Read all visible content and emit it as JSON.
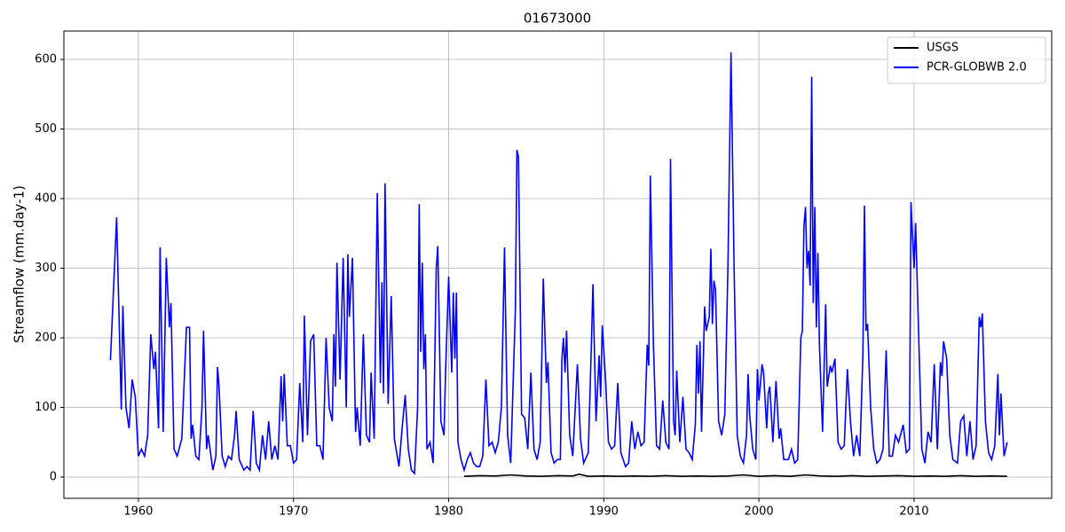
{
  "chart_data": {
    "type": "line",
    "title": "01673000",
    "y_label": "Streamflow (mm.day-1)",
    "xlim": [
      1955.2,
      2018.87
    ],
    "xticks": [
      1960,
      1970,
      1980,
      1990,
      2000,
      2010
    ],
    "ylim": [
      -30.6,
      640.8
    ],
    "yticks": [
      0,
      100,
      200,
      300,
      400,
      500,
      600
    ],
    "grid": true,
    "legend": "upper right",
    "series": [
      {
        "name": "USGS",
        "color": "#000000",
        "x": [
          1981,
          1982,
          1983,
          1984,
          1985,
          1986,
          1987,
          1988,
          1988.4,
          1989,
          1990,
          1991,
          1992,
          1993,
          1994,
          1995,
          1996,
          1997,
          1998,
          1999,
          2000,
          2001,
          2002,
          2003,
          2004,
          2005,
          2006,
          2007,
          2008,
          2009,
          2010,
          2011,
          2012,
          2013,
          2014,
          2015,
          2016
        ],
        "values": [
          1,
          2,
          1.5,
          3,
          1.5,
          1,
          2,
          1.5,
          4,
          1,
          1.5,
          1,
          1.5,
          1,
          2,
          1,
          1.5,
          1,
          1.5,
          3,
          1,
          2,
          1,
          3,
          1.5,
          1,
          2,
          1,
          1.5,
          2,
          1,
          1.5,
          1,
          2,
          1,
          1.5,
          1
        ]
      },
      {
        "name": "PCR-GLOBWB 2.0",
        "color": "#0000ff",
        "x": [
          1958.2,
          1958.6,
          1958.9,
          1959.0,
          1959.2,
          1959.4,
          1959.6,
          1959.8,
          1960.0,
          1960.2,
          1960.4,
          1960.6,
          1960.8,
          1961.0,
          1961.1,
          1961.3,
          1961.4,
          1961.6,
          1961.8,
          1962.0,
          1962.1,
          1962.3,
          1962.5,
          1962.8,
          1963.1,
          1963.3,
          1963.4,
          1963.5,
          1963.7,
          1963.9,
          1964.1,
          1964.2,
          1964.4,
          1964.5,
          1964.8,
          1965.0,
          1965.1,
          1965.2,
          1965.4,
          1965.6,
          1965.8,
          1966.0,
          1966.2,
          1966.3,
          1966.5,
          1966.8,
          1967.0,
          1967.2,
          1967.4,
          1967.6,
          1967.8,
          1968.0,
          1968.2,
          1968.4,
          1968.6,
          1968.8,
          1969.0,
          1969.2,
          1969.3,
          1969.4,
          1969.6,
          1969.8,
          1970.0,
          1970.2,
          1970.4,
          1970.6,
          1970.7,
          1970.9,
          1971.1,
          1971.3,
          1971.5,
          1971.7,
          1971.9,
          1972.1,
          1972.3,
          1972.5,
          1972.6,
          1972.7,
          1972.8,
          1973.0,
          1973.2,
          1973.4,
          1973.5,
          1973.6,
          1973.8,
          1974.0,
          1974.1,
          1974.3,
          1974.5,
          1974.7,
          1974.9,
          1975.0,
          1975.2,
          1975.4,
          1975.6,
          1975.7,
          1975.8,
          1975.9,
          1976.1,
          1976.3,
          1976.5,
          1976.8,
          1977.0,
          1977.2,
          1977.4,
          1977.6,
          1977.8,
          1978.0,
          1978.1,
          1978.2,
          1978.3,
          1978.4,
          1978.5,
          1978.6,
          1978.8,
          1979.0,
          1979.2,
          1979.3,
          1979.5,
          1979.7,
          1979.8,
          1980.0,
          1980.2,
          1980.3,
          1980.4,
          1980.5,
          1980.6,
          1980.8,
          1981.0,
          1981.2,
          1981.4,
          1981.6,
          1981.8,
          1982.0,
          1982.2,
          1982.4,
          1982.6,
          1982.8,
          1983.0,
          1983.2,
          1983.4,
          1983.6,
          1983.8,
          1984.0,
          1984.3,
          1984.4,
          1984.5,
          1984.7,
          1984.9,
          1985.1,
          1985.3,
          1985.5,
          1985.7,
          1985.9,
          1986.1,
          1986.3,
          1986.4,
          1986.6,
          1986.8,
          1987.0,
          1987.2,
          1987.3,
          1987.4,
          1987.5,
          1987.6,
          1987.8,
          1988.0,
          1988.3,
          1988.5,
          1988.7,
          1989.0,
          1989.2,
          1989.3,
          1989.5,
          1989.7,
          1989.8,
          1989.9,
          1990.1,
          1990.3,
          1990.5,
          1990.7,
          1990.9,
          1991.1,
          1991.4,
          1991.6,
          1991.8,
          1992.0,
          1992.2,
          1992.4,
          1992.6,
          1992.8,
          1992.9,
          1993.0,
          1993.2,
          1993.4,
          1993.6,
          1993.8,
          1994.0,
          1994.2,
          1994.3,
          1994.5,
          1994.6,
          1994.7,
          1994.9,
          1995.1,
          1995.3,
          1995.5,
          1995.7,
          1995.9,
          1996.0,
          1996.1,
          1996.2,
          1996.3,
          1996.5,
          1996.6,
          1996.8,
          1996.9,
          1997.0,
          1997.1,
          1997.2,
          1997.4,
          1997.6,
          1997.8,
          1998.0,
          1998.2,
          1998.4,
          1998.6,
          1998.8,
          1999.0,
          1999.2,
          1999.3,
          1999.4,
          1999.6,
          1999.8,
          1999.9,
          2000.0,
          2000.1,
          2000.2,
          2000.3,
          2000.5,
          2000.6,
          2000.7,
          2000.9,
          2001.1,
          2001.3,
          2001.4,
          2001.6,
          2001.9,
          2002.1,
          2002.3,
          2002.5,
          2002.7,
          2002.8,
          2002.9,
          2003.0,
          2003.1,
          2003.2,
          2003.3,
          2003.4,
          2003.5,
          2003.6,
          2003.7,
          2003.8,
          2003.9,
          2004.1,
          2004.3,
          2004.4,
          2004.6,
          2004.7,
          2004.9,
          2005.1,
          2005.3,
          2005.5,
          2005.7,
          2005.9,
          2006.1,
          2006.3,
          2006.5,
          2006.7,
          2006.8,
          2006.9,
          2007.0,
          2007.2,
          2007.4,
          2007.6,
          2007.8,
          2008.0,
          2008.2,
          2008.4,
          2008.6,
          2008.8,
          2009.0,
          2009.3,
          2009.5,
          2009.7,
          2009.8,
          2010.0,
          2010.1,
          2010.3,
          2010.5,
          2010.7,
          2010.9,
          2011.1,
          2011.3,
          2011.5,
          2011.7,
          2011.8,
          2011.9,
          2012.1,
          2012.3,
          2012.5,
          2012.8,
          2013.0,
          2013.2,
          2013.4,
          2013.6,
          2013.8,
          2014.0,
          2014.2,
          2014.3,
          2014.4,
          2014.6,
          2014.8,
          2015.0,
          2015.2,
          2015.4,
          2015.5,
          2015.6,
          2015.8,
          2016.0
        ],
        "values": [
          168,
          373,
          97,
          246,
          100,
          70,
          140,
          115,
          30,
          40,
          30,
          60,
          205,
          155,
          180,
          70,
          330,
          65,
          315,
          215,
          250,
          40,
          30,
          55,
          215,
          215,
          55,
          75,
          30,
          25,
          100,
          210,
          40,
          60,
          10,
          30,
          158,
          130,
          30,
          15,
          30,
          25,
          60,
          95,
          25,
          10,
          15,
          10,
          95,
          20,
          10,
          60,
          25,
          80,
          25,
          45,
          25,
          145,
          80,
          148,
          45,
          45,
          20,
          25,
          135,
          50,
          232,
          60,
          195,
          205,
          45,
          45,
          25,
          200,
          100,
          80,
          205,
          130,
          308,
          140,
          315,
          100,
          320,
          230,
          315,
          65,
          100,
          45,
          205,
          60,
          50,
          150,
          55,
          408,
          135,
          280,
          120,
          422,
          105,
          260,
          55,
          15,
          70,
          118,
          40,
          10,
          5,
          100,
          392,
          180,
          308,
          155,
          205,
          40,
          50,
          20,
          300,
          332,
          80,
          60,
          150,
          288,
          150,
          265,
          170,
          265,
          50,
          25,
          10,
          25,
          35,
          20,
          15,
          15,
          30,
          140,
          45,
          50,
          35,
          50,
          100,
          330,
          60,
          20,
          240,
          470,
          460,
          90,
          85,
          40,
          150,
          40,
          25,
          50,
          285,
          135,
          165,
          35,
          20,
          25,
          25,
          170,
          200,
          150,
          210,
          60,
          30,
          162,
          55,
          20,
          35,
          190,
          277,
          80,
          175,
          115,
          218,
          145,
          50,
          40,
          45,
          135,
          35,
          15,
          20,
          80,
          40,
          65,
          45,
          50,
          190,
          160,
          433,
          190,
          45,
          40,
          110,
          50,
          40,
          457,
          80,
          60,
          153,
          50,
          115,
          40,
          35,
          25,
          75,
          190,
          120,
          195,
          65,
          245,
          210,
          230,
          328,
          220,
          282,
          270,
          80,
          60,
          90,
          300,
          610,
          300,
          60,
          30,
          20,
          60,
          148,
          90,
          40,
          25,
          155,
          110,
          135,
          162,
          150,
          70,
          120,
          130,
          50,
          138,
          55,
          70,
          25,
          25,
          40,
          20,
          25,
          200,
          210,
          360,
          388,
          300,
          325,
          275,
          575,
          250,
          388,
          215,
          322,
          190,
          65,
          248,
          130,
          160,
          150,
          170,
          50,
          40,
          45,
          155,
          80,
          30,
          60,
          30,
          175,
          390,
          210,
          220,
          100,
          40,
          20,
          25,
          40,
          182,
          30,
          30,
          60,
          50,
          75,
          35,
          40,
          395,
          300,
          365,
          200,
          40,
          20,
          65,
          50,
          162,
          40,
          165,
          145,
          195,
          170,
          60,
          25,
          20,
          80,
          88,
          30,
          80,
          25,
          45,
          230,
          215,
          235,
          80,
          35,
          25,
          45,
          148,
          60,
          120,
          30,
          50
        ]
      }
    ]
  }
}
